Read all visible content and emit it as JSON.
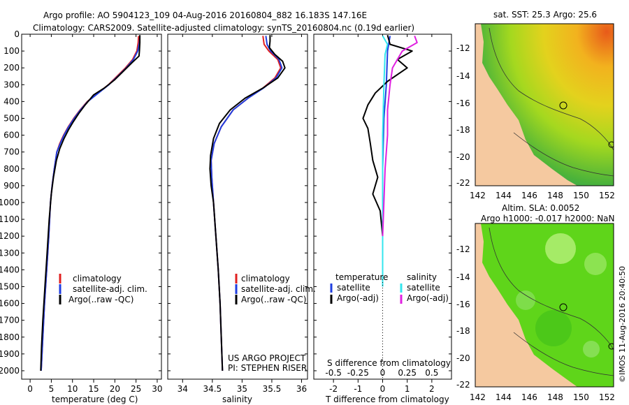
{
  "header": {
    "line1": "Argo profile: AO 5904123_109 04-Aug-2016 20160804_882 16.183S 147.16E",
    "line2": "Climatology: CARS2009. Satellite-adjusted climatology: synTS_20160804.nc (0.19d earlier)"
  },
  "colors": {
    "climatology": "#e02020",
    "satellite": "#1f3ee0",
    "argo": "#000000",
    "salinity_sat": "#33e6ee",
    "salinity_argo": "#e020e0",
    "land": "#f5c9a0"
  },
  "chart_data": [
    {
      "type": "line",
      "id": "temperature",
      "xlabel": "temperature (deg C)",
      "xlim": [
        -2,
        31
      ],
      "xticks": [
        0,
        5,
        10,
        15,
        20,
        25,
        30
      ],
      "ylim": [
        0,
        2050
      ],
      "yticks": [
        0,
        100,
        200,
        300,
        400,
        500,
        600,
        700,
        800,
        900,
        1000,
        1100,
        1200,
        1300,
        1400,
        1500,
        1600,
        1700,
        1800,
        1900,
        2000
      ],
      "legend": [
        "climatology",
        "satellite-adj. clim.",
        "Argo(..raw -QC)"
      ],
      "series": [
        {
          "name": "climatology",
          "color": "#e02020",
          "points": [
            [
              25.6,
              10
            ],
            [
              25.5,
              50
            ],
            [
              25.2,
              100
            ],
            [
              24.2,
              150
            ],
            [
              22.5,
              200
            ],
            [
              20.5,
              250
            ],
            [
              18.5,
              300
            ],
            [
              16.0,
              350
            ],
            [
              13.5,
              400
            ],
            [
              11.8,
              450
            ],
            [
              10.3,
              500
            ],
            [
              9.0,
              550
            ],
            [
              7.9,
              600
            ],
            [
              7.0,
              650
            ],
            [
              6.3,
              700
            ],
            [
              5.7,
              800
            ],
            [
              5.2,
              900
            ],
            [
              4.8,
              1000
            ],
            [
              4.4,
              1200
            ],
            [
              3.9,
              1400
            ],
            [
              3.4,
              1600
            ],
            [
              3.0,
              1800
            ],
            [
              2.6,
              2000
            ]
          ]
        },
        {
          "name": "satellite-adj. clim.",
          "color": "#1f3ee0",
          "points": [
            [
              25.9,
              10
            ],
            [
              25.8,
              50
            ],
            [
              25.4,
              100
            ],
            [
              24.4,
              150
            ],
            [
              22.7,
              200
            ],
            [
              20.7,
              250
            ],
            [
              18.6,
              300
            ],
            [
              16.1,
              350
            ],
            [
              13.6,
              400
            ],
            [
              11.9,
              450
            ],
            [
              10.4,
              500
            ],
            [
              9.1,
              550
            ],
            [
              8.0,
              600
            ],
            [
              7.1,
              650
            ],
            [
              6.3,
              700
            ],
            [
              5.7,
              800
            ],
            [
              5.2,
              900
            ],
            [
              4.8,
              1000
            ],
            [
              4.4,
              1200
            ],
            [
              3.9,
              1400
            ],
            [
              3.4,
              1600
            ],
            [
              3.0,
              1800
            ],
            [
              2.6,
              2000
            ]
          ]
        },
        {
          "name": "Argo(..raw -QC)",
          "color": "#000000",
          "points": [
            [
              25.9,
              5
            ],
            [
              25.9,
              50
            ],
            [
              25.8,
              100
            ],
            [
              25.7,
              130
            ],
            [
              24.0,
              170
            ],
            [
              22.0,
              220
            ],
            [
              20.0,
              270
            ],
            [
              17.5,
              320
            ],
            [
              15.0,
              360
            ],
            [
              13.0,
              420
            ],
            [
              11.5,
              470
            ],
            [
              10.2,
              520
            ],
            [
              9.0,
              570
            ],
            [
              8.0,
              620
            ],
            [
              7.0,
              680
            ],
            [
              6.2,
              750
            ],
            [
              5.5,
              850
            ],
            [
              5.0,
              950
            ],
            [
              4.5,
              1100
            ],
            [
              4.0,
              1300
            ],
            [
              3.5,
              1500
            ],
            [
              3.0,
              1700
            ],
            [
              2.7,
              1850
            ],
            [
              2.5,
              2000
            ]
          ]
        }
      ]
    },
    {
      "type": "line",
      "id": "salinity",
      "xlabel": "salinity",
      "xlim": [
        33.75,
        36.1
      ],
      "xticks": [
        34,
        34.5,
        35,
        35.5,
        36
      ],
      "ylim": [
        0,
        2050
      ],
      "legend": [
        "climatology",
        "satellite-adj. clim.",
        "Argo(..raw -QC)"
      ],
      "annotations": [
        "US ARGO PROJECT",
        "PI: STEPHEN RISER"
      ],
      "series": [
        {
          "name": "climatology",
          "color": "#e02020",
          "points": [
            [
              35.35,
              10
            ],
            [
              35.37,
              60
            ],
            [
              35.45,
              100
            ],
            [
              35.6,
              150
            ],
            [
              35.65,
              200
            ],
            [
              35.55,
              260
            ],
            [
              35.35,
              320
            ],
            [
              35.1,
              380
            ],
            [
              34.85,
              450
            ],
            [
              34.65,
              550
            ],
            [
              34.53,
              650
            ],
            [
              34.48,
              750
            ],
            [
              34.49,
              850
            ],
            [
              34.52,
              1000
            ],
            [
              34.56,
              1200
            ],
            [
              34.6,
              1400
            ],
            [
              34.63,
              1600
            ],
            [
              34.65,
              1800
            ],
            [
              34.67,
              2000
            ]
          ]
        },
        {
          "name": "satellite-adj. clim.",
          "color": "#1f3ee0",
          "points": [
            [
              35.4,
              10
            ],
            [
              35.42,
              60
            ],
            [
              35.48,
              100
            ],
            [
              35.62,
              150
            ],
            [
              35.67,
              200
            ],
            [
              35.57,
              260
            ],
            [
              35.36,
              320
            ],
            [
              35.1,
              380
            ],
            [
              34.85,
              450
            ],
            [
              34.65,
              550
            ],
            [
              34.53,
              650
            ],
            [
              34.48,
              750
            ],
            [
              34.49,
              850
            ],
            [
              34.52,
              1000
            ],
            [
              34.56,
              1200
            ],
            [
              34.6,
              1400
            ],
            [
              34.63,
              1600
            ],
            [
              34.65,
              1800
            ],
            [
              34.67,
              2000
            ]
          ]
        },
        {
          "name": "Argo(..raw -QC)",
          "color": "#000000",
          "points": [
            [
              35.47,
              5
            ],
            [
              35.47,
              40
            ],
            [
              35.46,
              80
            ],
            [
              35.55,
              120
            ],
            [
              35.68,
              160
            ],
            [
              35.72,
              200
            ],
            [
              35.6,
              260
            ],
            [
              35.35,
              320
            ],
            [
              35.05,
              380
            ],
            [
              34.8,
              450
            ],
            [
              34.62,
              530
            ],
            [
              34.52,
              620
            ],
            [
              34.47,
              720
            ],
            [
              34.46,
              800
            ],
            [
              34.48,
              900
            ],
            [
              34.52,
              1000
            ],
            [
              34.56,
              1200
            ],
            [
              34.6,
              1400
            ],
            [
              34.63,
              1600
            ],
            [
              34.65,
              1800
            ],
            [
              34.67,
              2000
            ]
          ]
        }
      ]
    },
    {
      "type": "line",
      "id": "difference",
      "xlabel": "T difference from climatology",
      "xlabel2": "S difference from climatology",
      "xlim": [
        -2.8,
        2.8
      ],
      "xticks": [
        -2,
        -1,
        0,
        1,
        2
      ],
      "xticks_s_labels": [
        "-0.5",
        "-0.25",
        "0",
        "0.25",
        "0.5"
      ],
      "xticks_s_values": [
        -2,
        -1,
        0,
        1,
        2
      ],
      "ylim": [
        0,
        2050
      ],
      "legend_temperature": [
        "temperature",
        "satellite",
        "Argo(-adj)"
      ],
      "legend_salinity": [
        "salinity",
        "satellite",
        "Argo(-adj)"
      ],
      "series": [
        {
          "name": "T satellite",
          "color": "#1f3ee0",
          "points": [
            [
              0.3,
              10
            ],
            [
              0.2,
              100
            ],
            [
              0.15,
              300
            ],
            [
              0.05,
              500
            ],
            [
              0,
              800
            ],
            [
              0,
              1500
            ]
          ]
        },
        {
          "name": "T Argo(-adj)",
          "color": "#000000",
          "points": [
            [
              0.2,
              5
            ],
            [
              0.3,
              60
            ],
            [
              1.2,
              100
            ],
            [
              0.6,
              150
            ],
            [
              1.0,
              200
            ],
            [
              0.2,
              280
            ],
            [
              -0.3,
              350
            ],
            [
              -0.6,
              420
            ],
            [
              -0.8,
              500
            ],
            [
              -0.6,
              560
            ],
            [
              -0.5,
              650
            ],
            [
              -0.4,
              750
            ],
            [
              -0.2,
              850
            ],
            [
              -0.4,
              950
            ],
            [
              -0.1,
              1050
            ],
            [
              0,
              1200
            ],
            [
              0,
              1300
            ]
          ]
        },
        {
          "name": "S satellite",
          "color": "#33e6ee",
          "points": [
            [
              0.0,
              10
            ],
            [
              0.2,
              60
            ],
            [
              0.1,
              120
            ],
            [
              0.05,
              300
            ],
            [
              0,
              600
            ],
            [
              0,
              1000
            ],
            [
              0,
              1500
            ]
          ]
        },
        {
          "name": "S Argo(-adj)",
          "color": "#e020e0",
          "points": [
            [
              1.3,
              10
            ],
            [
              1.4,
              50
            ],
            [
              0.8,
              100
            ],
            [
              0.4,
              200
            ],
            [
              0.3,
              300
            ],
            [
              0.2,
              450
            ],
            [
              0.2,
              600
            ],
            [
              0.1,
              800
            ],
            [
              0.05,
              1000
            ],
            [
              0,
              1200
            ]
          ]
        }
      ]
    }
  ],
  "maps": {
    "top": {
      "title": "sat. SST: 25.3 Argo: 25.6",
      "lat_ticks": [
        "-12",
        "-14",
        "-16",
        "-18",
        "-20",
        "-22"
      ],
      "lon_ticks": [
        "142",
        "144",
        "146",
        "148",
        "150",
        "152"
      ]
    },
    "bottom": {
      "title": "Altim. SLA: 0.0052",
      "subtitle": "Argo h1000: -0.017 h2000: NaN",
      "lat_ticks": [
        "-12",
        "-14",
        "-16",
        "-18",
        "-20",
        "-22"
      ],
      "lon_ticks": [
        "142",
        "144",
        "146",
        "148",
        "150",
        "152"
      ]
    }
  },
  "footer": {
    "stamp": "©IMOS 11-Aug-2016 20:40:50"
  }
}
